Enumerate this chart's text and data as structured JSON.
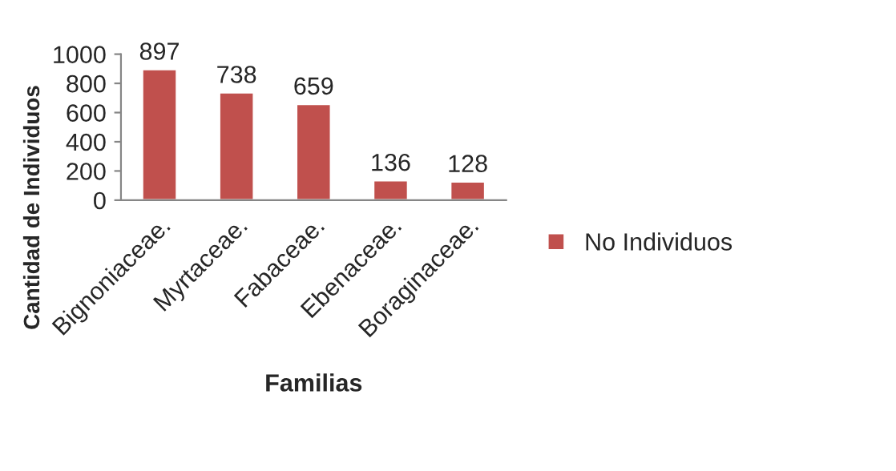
{
  "chart_data": {
    "type": "bar",
    "xlabel": "Familias",
    "ylabel": "Cantidad de Individuos",
    "categories": [
      "Bignoniaceae.",
      "Myrtaceae.",
      "Fabaceae.",
      "Ebenaceae.",
      "Boraginaceae."
    ],
    "series": [
      {
        "name": "No Individuos",
        "color": "#c0504d",
        "values": [
          897,
          738,
          659,
          136,
          128
        ]
      }
    ],
    "ylim": [
      0,
      1000
    ],
    "yticks": [
      0,
      200,
      400,
      600,
      800,
      1000
    ],
    "data_labels": true,
    "legend": "right",
    "grid": false
  }
}
